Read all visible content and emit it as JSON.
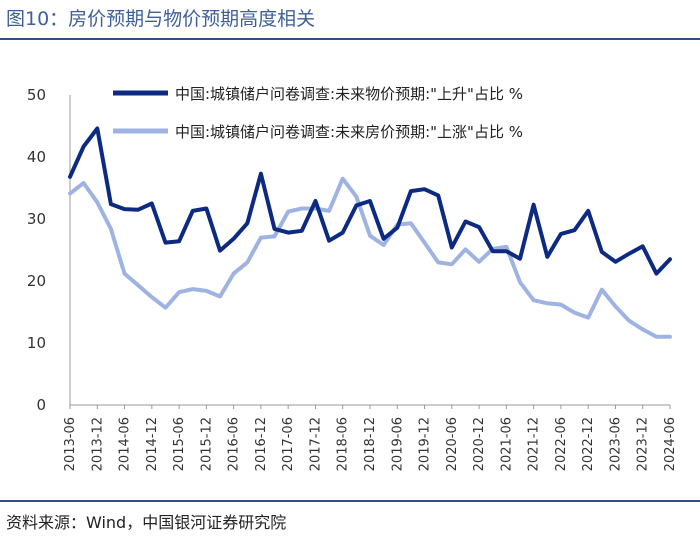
{
  "figure_title": "图10：房价预期与物价预期高度相关",
  "source_note": "资料来源：Wind，中国银河证券研究院",
  "colors": {
    "rule": "#2e4f8c",
    "title": "#3f5f9a"
  },
  "chart_data": {
    "type": "line",
    "title": "",
    "xlabel": "",
    "ylabel": "",
    "ylim": [
      0,
      50
    ],
    "yticks": [
      0,
      10,
      20,
      30,
      40,
      50
    ],
    "grid": false,
    "legend_position": "top",
    "x_tick_labels": [
      "2013-06",
      "2013-12",
      "2014-06",
      "2014-12",
      "2015-06",
      "2015-12",
      "2016-06",
      "2016-12",
      "2017-06",
      "2017-12",
      "2018-06",
      "2018-12",
      "2019-06",
      "2019-12",
      "2020-06",
      "2020-12",
      "2021-06",
      "2021-12",
      "2022-06",
      "2022-12",
      "2023-06",
      "2023-12",
      "2024-06"
    ],
    "x": [
      "2013-06",
      "2013-09",
      "2013-12",
      "2014-03",
      "2014-06",
      "2014-09",
      "2014-12",
      "2015-03",
      "2015-06",
      "2015-09",
      "2015-12",
      "2016-03",
      "2016-06",
      "2016-09",
      "2016-12",
      "2017-03",
      "2017-06",
      "2017-09",
      "2017-12",
      "2018-03",
      "2018-06",
      "2018-09",
      "2018-12",
      "2019-03",
      "2019-06",
      "2019-09",
      "2019-12",
      "2020-03",
      "2020-06",
      "2020-09",
      "2020-12",
      "2021-03",
      "2021-06",
      "2021-09",
      "2021-12",
      "2022-03",
      "2022-06",
      "2022-09",
      "2022-12",
      "2023-03",
      "2023-06",
      "2023-09",
      "2023-12",
      "2024-03",
      "2024-06"
    ],
    "series": [
      {
        "name": "中国:城镇储户问卷调查:未来物价预期:\"上升\"占比 %",
        "color": "#0d2a82",
        "values": [
          36.8,
          41.7,
          44.6,
          32.4,
          31.6,
          31.5,
          32.5,
          26.2,
          26.4,
          31.3,
          31.7,
          24.9,
          26.8,
          29.3,
          37.3,
          28.4,
          27.8,
          28.1,
          32.9,
          26.5,
          27.8,
          32.2,
          32.9,
          26.8,
          28.6,
          34.5,
          34.8,
          33.8,
          25.4,
          29.6,
          28.7,
          24.8,
          24.8,
          23.6,
          32.3,
          23.9,
          27.6,
          28.2,
          31.3,
          24.7,
          23.1,
          24.4,
          25.6,
          21.2,
          23.5
        ]
      },
      {
        "name": "中国:城镇储户问卷调查:未来房价预期:\"上涨\"占比 %",
        "color": "#9fb3e3",
        "values": [
          34.1,
          35.8,
          32.7,
          28.4,
          21.2,
          19.3,
          17.4,
          15.7,
          18.2,
          18.7,
          18.4,
          17.5,
          21.2,
          23.0,
          27.0,
          27.2,
          31.2,
          31.7,
          31.7,
          31.3,
          36.5,
          33.6,
          27.3,
          25.8,
          29.1,
          29.3,
          26.2,
          23.0,
          22.7,
          25.1,
          23.1,
          25.2,
          25.5,
          19.8,
          16.9,
          16.4,
          16.2,
          14.9,
          14.1,
          18.6,
          15.9,
          13.6,
          12.2,
          11.0,
          11.0
        ]
      }
    ]
  }
}
